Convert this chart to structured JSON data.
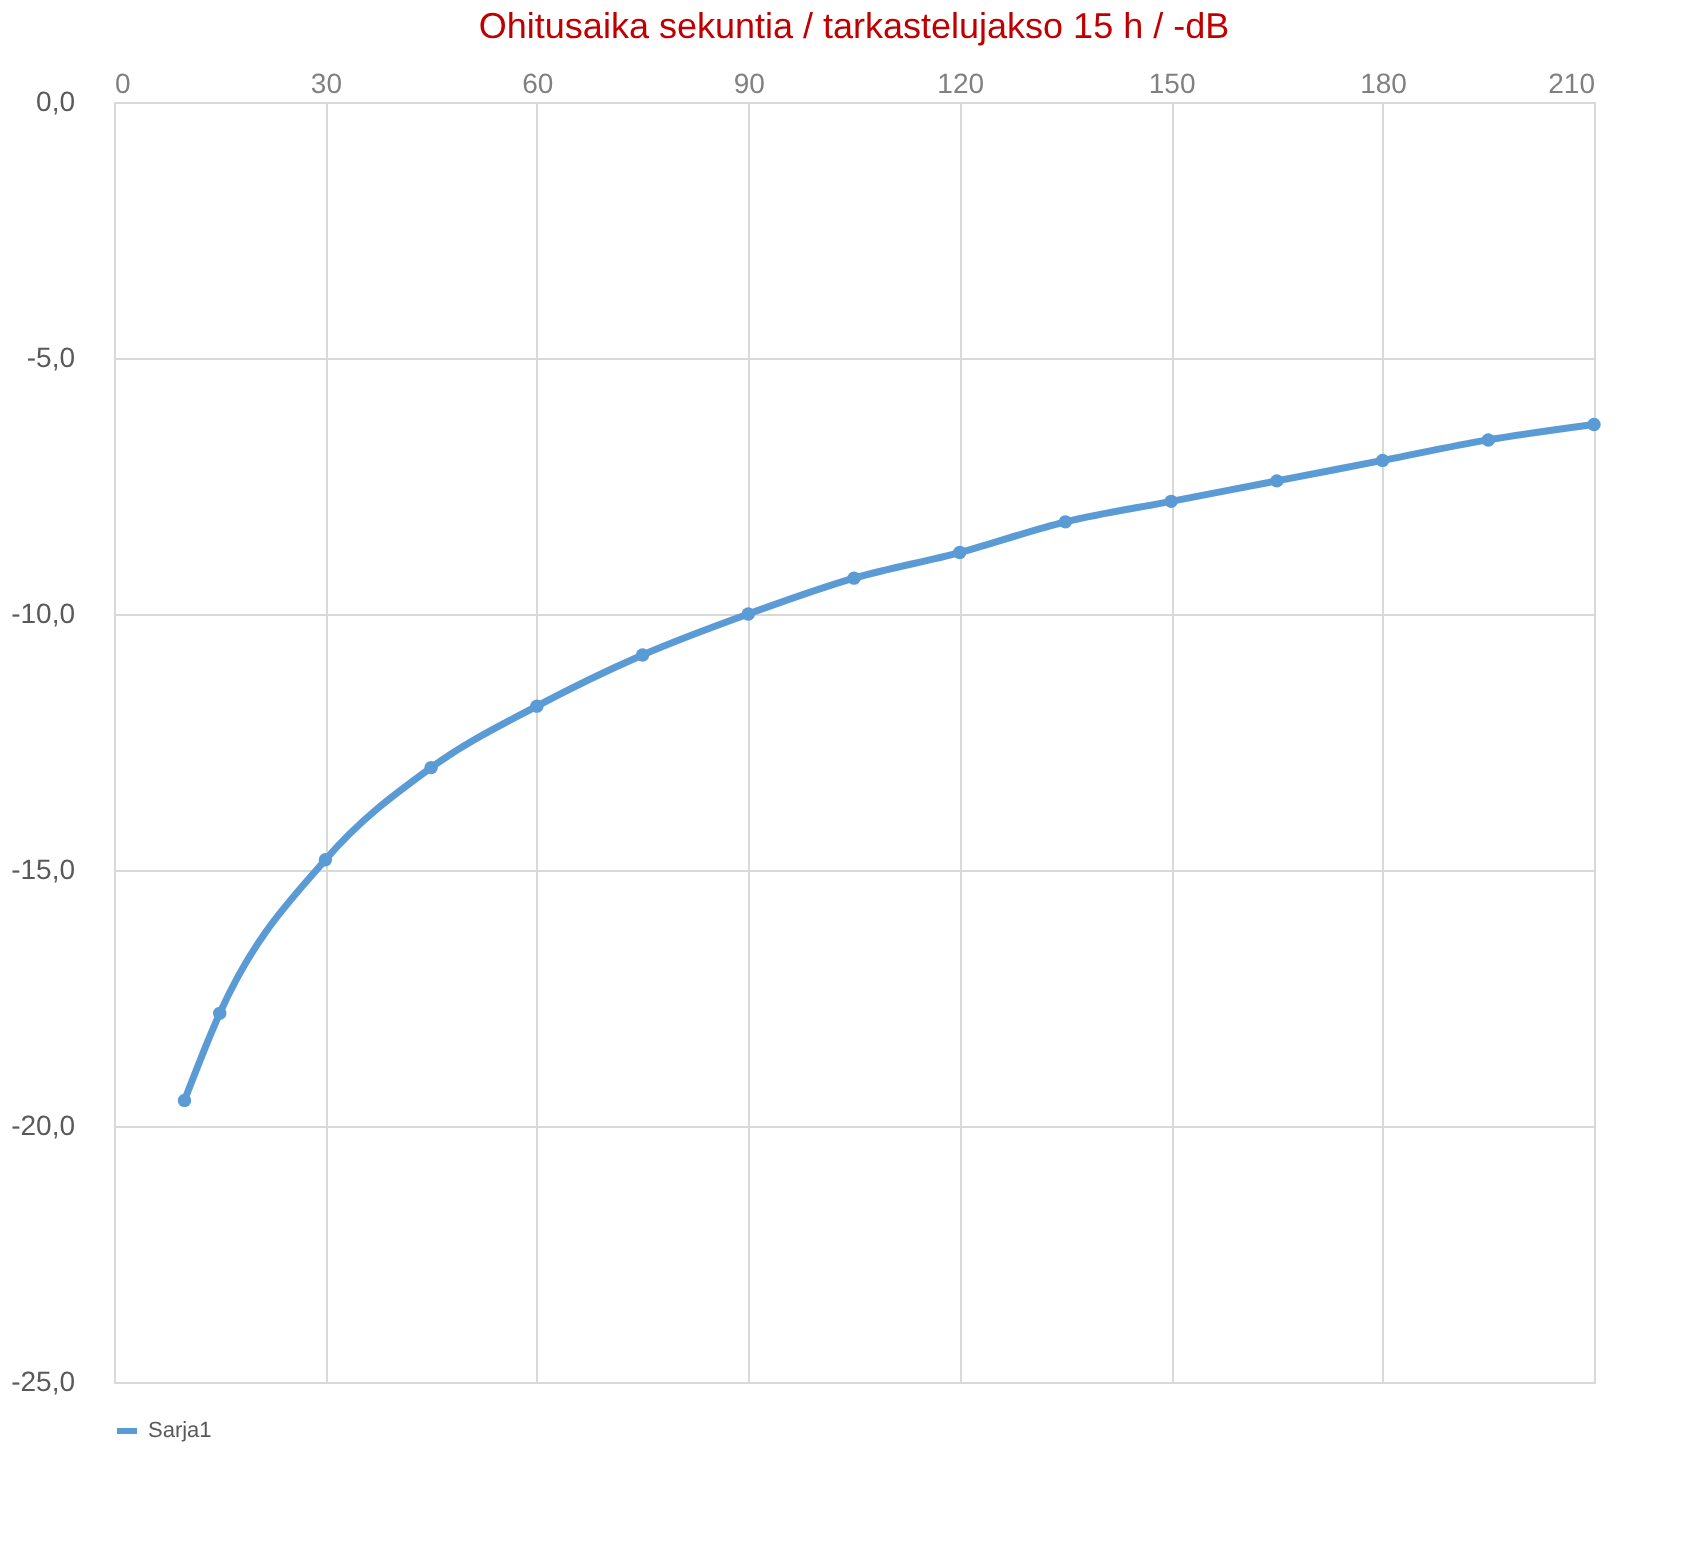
{
  "chart_data": {
    "type": "line",
    "title": "Ohitusaika sekuntia / tarkastelujakso 15 h / -dB",
    "x": [
      10,
      15,
      30,
      45,
      60,
      75,
      90,
      105,
      120,
      135,
      150,
      165,
      180,
      195,
      210
    ],
    "series": [
      {
        "name": "Sarja1",
        "color": "#5b9bd5",
        "values": [
          -19.5,
          -17.8,
          -14.8,
          -13.0,
          -11.8,
          -10.8,
          -10.0,
          -9.3,
          -8.8,
          -8.2,
          -7.8,
          -7.4,
          -7.0,
          -6.6,
          -6.3
        ]
      }
    ],
    "xlim": [
      0,
      210
    ],
    "xticks": [
      0,
      30,
      60,
      90,
      120,
      150,
      180,
      210
    ],
    "ylim": [
      -25,
      0
    ],
    "yticks": [
      {
        "value": 0,
        "label": "0,0"
      },
      {
        "value": -5,
        "label": "-5,0"
      },
      {
        "value": -10,
        "label": "-10,0"
      },
      {
        "value": -15,
        "label": "-15,0"
      },
      {
        "value": -20,
        "label": "-20,0"
      },
      {
        "value": -25,
        "label": "-25,0"
      }
    ],
    "grid": true,
    "legend": "bottom",
    "marker": "circle",
    "line_style": "solid"
  }
}
